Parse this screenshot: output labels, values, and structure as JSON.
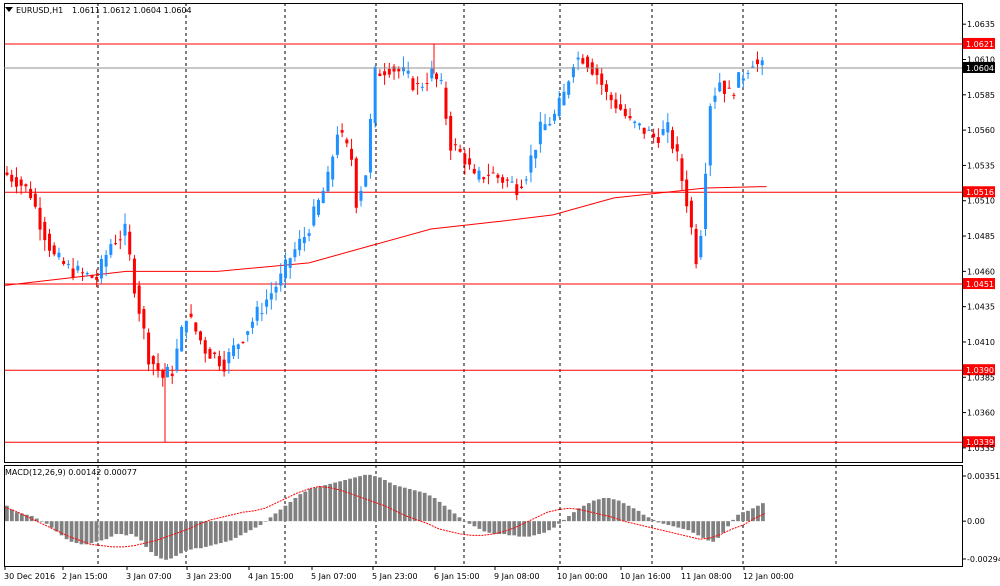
{
  "symbol": "EURUSD,H1",
  "ohlc": "1.0611 1.0612 1.0604 1.0604",
  "indicator": {
    "label": "MACD(12,26,9) 0.00142 0.00077"
  },
  "price_axis": {
    "ticks": [
      "1.0635",
      "1.0610",
      "1.0585",
      "1.0560",
      "1.0535",
      "1.0510",
      "1.0485",
      "1.0460",
      "1.0435",
      "1.0410",
      "1.0385",
      "1.0360",
      "1.0335"
    ],
    "current_price": "1.0604"
  },
  "horizontal_levels": [
    {
      "label": "1.0621",
      "value": 1.0621
    },
    {
      "label": "1.0516",
      "value": 1.0516
    },
    {
      "label": "1.0451",
      "value": 1.0451
    },
    {
      "label": "1.0390",
      "value": 1.039
    },
    {
      "label": "1.0339",
      "value": 1.0339
    }
  ],
  "macd_axis": {
    "ticks": [
      "0.00351",
      "0.00",
      "-0.00294"
    ]
  },
  "time_labels": [
    "30 Dec 2016",
    "2 Jan 15:00",
    "3 Jan 07:00",
    "3 Jan 23:00",
    "4 Jan 15:00",
    "5 Jan 07:00",
    "5 Jan 23:00",
    "6 Jan 15:00",
    "9 Jan 08:00",
    "10 Jan 00:00",
    "10 Jan 16:00",
    "11 Jan 08:00",
    "12 Jan 00:00"
  ],
  "colors": {
    "bull": "#1e90ff",
    "bear": "#ff0000",
    "level": "#ff0000",
    "ma": "#ff0000",
    "hist": "#808080",
    "signal": "#ff0000",
    "grid": "#000000"
  },
  "chart_data": {
    "type": "candlestick",
    "title": "EURUSD,H1",
    "ylim": [
      1.0325,
      1.065
    ],
    "moving_average": [
      [
        0,
        1.045
      ],
      [
        40,
        1.046
      ],
      [
        70,
        1.046
      ],
      [
        100,
        1.0466
      ],
      [
        120,
        1.0478
      ],
      [
        140,
        1.049
      ],
      [
        165,
        1.0496
      ],
      [
        180,
        1.05
      ],
      [
        200,
        1.0512
      ],
      [
        230,
        1.0519
      ],
      [
        250,
        1.052
      ]
    ],
    "macd_histogram": [
      0.0012,
      0.0009,
      0.0007,
      0.0006,
      0.0005,
      0.0004,
      0.0002,
      0.0,
      -0.0002,
      -0.0005,
      -0.0008,
      -0.0011,
      -0.0014,
      -0.0016,
      -0.0017,
      -0.0018,
      -0.0018,
      -0.0017,
      -0.0016,
      -0.0015,
      -0.0014,
      -0.0012,
      -0.001,
      -0.001,
      -0.0011,
      -0.001,
      -0.0012,
      -0.0015,
      -0.002,
      -0.0024,
      -0.0027,
      -0.0029,
      -0.003,
      -0.0029,
      -0.0027,
      -0.0025,
      -0.0023,
      -0.0022,
      -0.0021,
      -0.0021,
      -0.002,
      -0.0019,
      -0.0018,
      -0.0017,
      -0.0016,
      -0.0015,
      -0.0013,
      -0.0011,
      -0.0009,
      -0.0007,
      -0.0005,
      -0.0003,
      0.0,
      0.0003,
      0.0006,
      0.0009,
      0.0012,
      0.0015,
      0.0018,
      0.0021,
      0.0023,
      0.0025,
      0.0026,
      0.0027,
      0.0028,
      0.0029,
      0.003,
      0.0031,
      0.0032,
      0.0033,
      0.0034,
      0.0035,
      0.0036,
      0.0036,
      0.0035,
      0.0034,
      0.0032,
      0.003,
      0.0028,
      0.0027,
      0.0026,
      0.0025,
      0.0024,
      0.0023,
      0.0022,
      0.002,
      0.0018,
      0.0015,
      0.0012,
      0.0009,
      0.0006,
      0.0003,
      0.0,
      -0.0002,
      -0.0004,
      -0.0006,
      -0.0008,
      -0.0009,
      -0.001,
      -0.001,
      -0.001,
      -0.0011,
      -0.0011,
      -0.0012,
      -0.0012,
      -0.0012,
      -0.0011,
      -0.001,
      -0.0009,
      -0.0007,
      -0.0005,
      -0.0002,
      0.0001,
      0.0004,
      0.0007,
      0.001,
      0.0012,
      0.0014,
      0.0016,
      0.0017,
      0.0018,
      0.0018,
      0.0017,
      0.0016,
      0.0014,
      0.0012,
      0.001,
      0.0008,
      0.0005,
      0.0003,
      0.0001,
      -0.0001,
      -0.0002,
      -0.0003,
      -0.0004,
      -0.0005,
      -0.0006,
      -0.0007,
      -0.0009,
      -0.0011,
      -0.0013,
      -0.0015,
      -0.0016,
      -0.0013,
      -0.0009,
      -0.0004,
      0.0001,
      0.0005,
      0.0007,
      0.0008,
      0.001,
      0.0012,
      0.0014
    ],
    "macd_signal": [
      0.0011,
      0.0008,
      0.0004,
      0.0,
      -0.0004,
      -0.0008,
      -0.0012,
      -0.0015,
      -0.0018,
      -0.0019,
      -0.002,
      -0.002,
      -0.0019,
      -0.0017,
      -0.0015,
      -0.0012,
      -0.0009,
      -0.0006,
      -0.0002,
      0.0001,
      0.0003,
      0.0005,
      0.0007,
      0.0008,
      0.001,
      0.0014,
      0.0018,
      0.0022,
      0.0025,
      0.0027,
      0.0026,
      0.0024,
      0.0021,
      0.0018,
      0.0015,
      0.0012,
      0.0008,
      0.0004,
      0.0001,
      -0.0002,
      -0.0006,
      -0.0008,
      -0.001,
      -0.0011,
      -0.0011,
      -0.001,
      -0.0008,
      -0.0005,
      -0.0001,
      0.0003,
      0.0007,
      0.0009,
      0.001,
      0.0009,
      0.0007,
      0.0005,
      0.0003,
      0.0,
      -0.0002,
      -0.0004,
      -0.0006,
      -0.0008,
      -0.001,
      -0.0012,
      -0.0014,
      -0.0013,
      -0.001,
      -0.0006,
      -0.0003,
      0.0002,
      0.0006
    ]
  }
}
